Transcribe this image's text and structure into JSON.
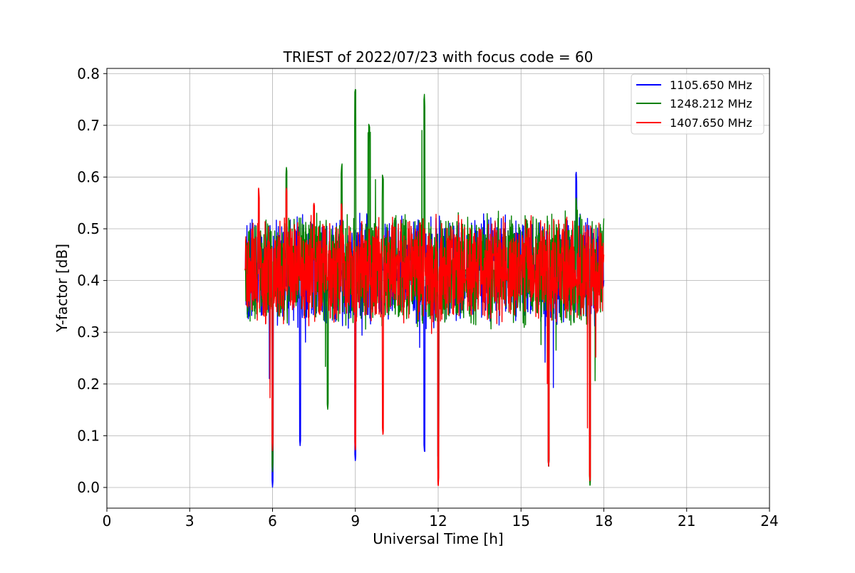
{
  "chart_data": {
    "type": "line",
    "title": "TRIEST of 2022/07/23 with focus code = 60",
    "xlabel": "Universal Time [h]",
    "ylabel": "Y-factor [dB]",
    "xlim": [
      0,
      24
    ],
    "ylim": [
      -0.04,
      0.81
    ],
    "x_ticks": [
      0,
      3,
      6,
      9,
      12,
      15,
      18,
      21,
      24
    ],
    "y_ticks": [
      0.0,
      0.1,
      0.2,
      0.3,
      0.4,
      0.5,
      0.6,
      0.7,
      0.8
    ],
    "x_tick_labels": [
      "0",
      "3",
      "6",
      "9",
      "12",
      "15",
      "18",
      "21",
      "24"
    ],
    "y_tick_labels": [
      "0.0",
      "0.1",
      "0.2",
      "0.3",
      "0.4",
      "0.5",
      "0.6",
      "0.7",
      "0.8"
    ],
    "grid": true,
    "legend_position": "top-right",
    "x_range_of_data": [
      5.0,
      18.0
    ],
    "series": [
      {
        "name": "1105.650 MHz",
        "color": "#0000ff",
        "x": [
          5.0,
          5.5,
          6.0,
          6.5,
          7.0,
          7.5,
          8.0,
          8.5,
          9.0,
          9.5,
          10.0,
          10.5,
          11.0,
          11.5,
          12.0,
          12.5,
          13.0,
          13.5,
          14.0,
          14.5,
          15.0,
          15.5,
          16.0,
          16.5,
          17.0,
          17.5,
          18.0
        ],
        "y": [
          0.42,
          0.44,
          0.0,
          0.4,
          0.08,
          0.45,
          0.38,
          0.42,
          0.05,
          0.45,
          0.42,
          0.4,
          0.45,
          0.07,
          0.06,
          0.43,
          0.41,
          0.42,
          0.44,
          0.4,
          0.42,
          0.43,
          0.04,
          0.45,
          0.61,
          0.07,
          0.4
        ],
        "y_min": 0.0,
        "y_max": 0.65
      },
      {
        "name": "1248.212 MHz",
        "color": "#008000",
        "x": [
          5.0,
          5.5,
          6.0,
          6.5,
          7.0,
          7.5,
          8.0,
          8.5,
          9.0,
          9.5,
          10.0,
          10.5,
          11.0,
          11.5,
          12.0,
          12.5,
          13.0,
          13.5,
          14.0,
          14.5,
          15.0,
          15.5,
          16.0,
          16.5,
          17.0,
          17.5,
          18.0
        ],
        "y": [
          0.42,
          0.45,
          0.03,
          0.62,
          0.4,
          0.45,
          0.15,
          0.62,
          0.77,
          0.7,
          0.6,
          0.43,
          0.44,
          0.76,
          0.02,
          0.44,
          0.42,
          0.43,
          0.42,
          0.41,
          0.43,
          0.42,
          0.04,
          0.44,
          0.56,
          0.0,
          0.52
        ],
        "y_min": 0.0,
        "y_max": 0.77
      },
      {
        "name": "1407.650 MHz",
        "color": "#ff0000",
        "x": [
          5.0,
          5.5,
          6.0,
          6.5,
          7.0,
          7.5,
          8.0,
          8.5,
          9.0,
          9.5,
          10.0,
          10.5,
          11.0,
          11.5,
          12.0,
          12.5,
          13.0,
          13.5,
          14.0,
          14.5,
          15.0,
          15.5,
          16.0,
          16.5,
          17.0,
          17.5,
          18.0
        ],
        "y": [
          0.42,
          0.58,
          0.07,
          0.58,
          0.4,
          0.55,
          0.4,
          0.55,
          0.07,
          0.5,
          0.1,
          0.45,
          0.4,
          0.5,
          0.0,
          0.48,
          0.4,
          0.5,
          0.45,
          0.4,
          0.45,
          0.4,
          0.04,
          0.5,
          0.4,
          0.01,
          0.45
        ],
        "y_min": 0.0,
        "y_max": 0.61
      }
    ]
  }
}
